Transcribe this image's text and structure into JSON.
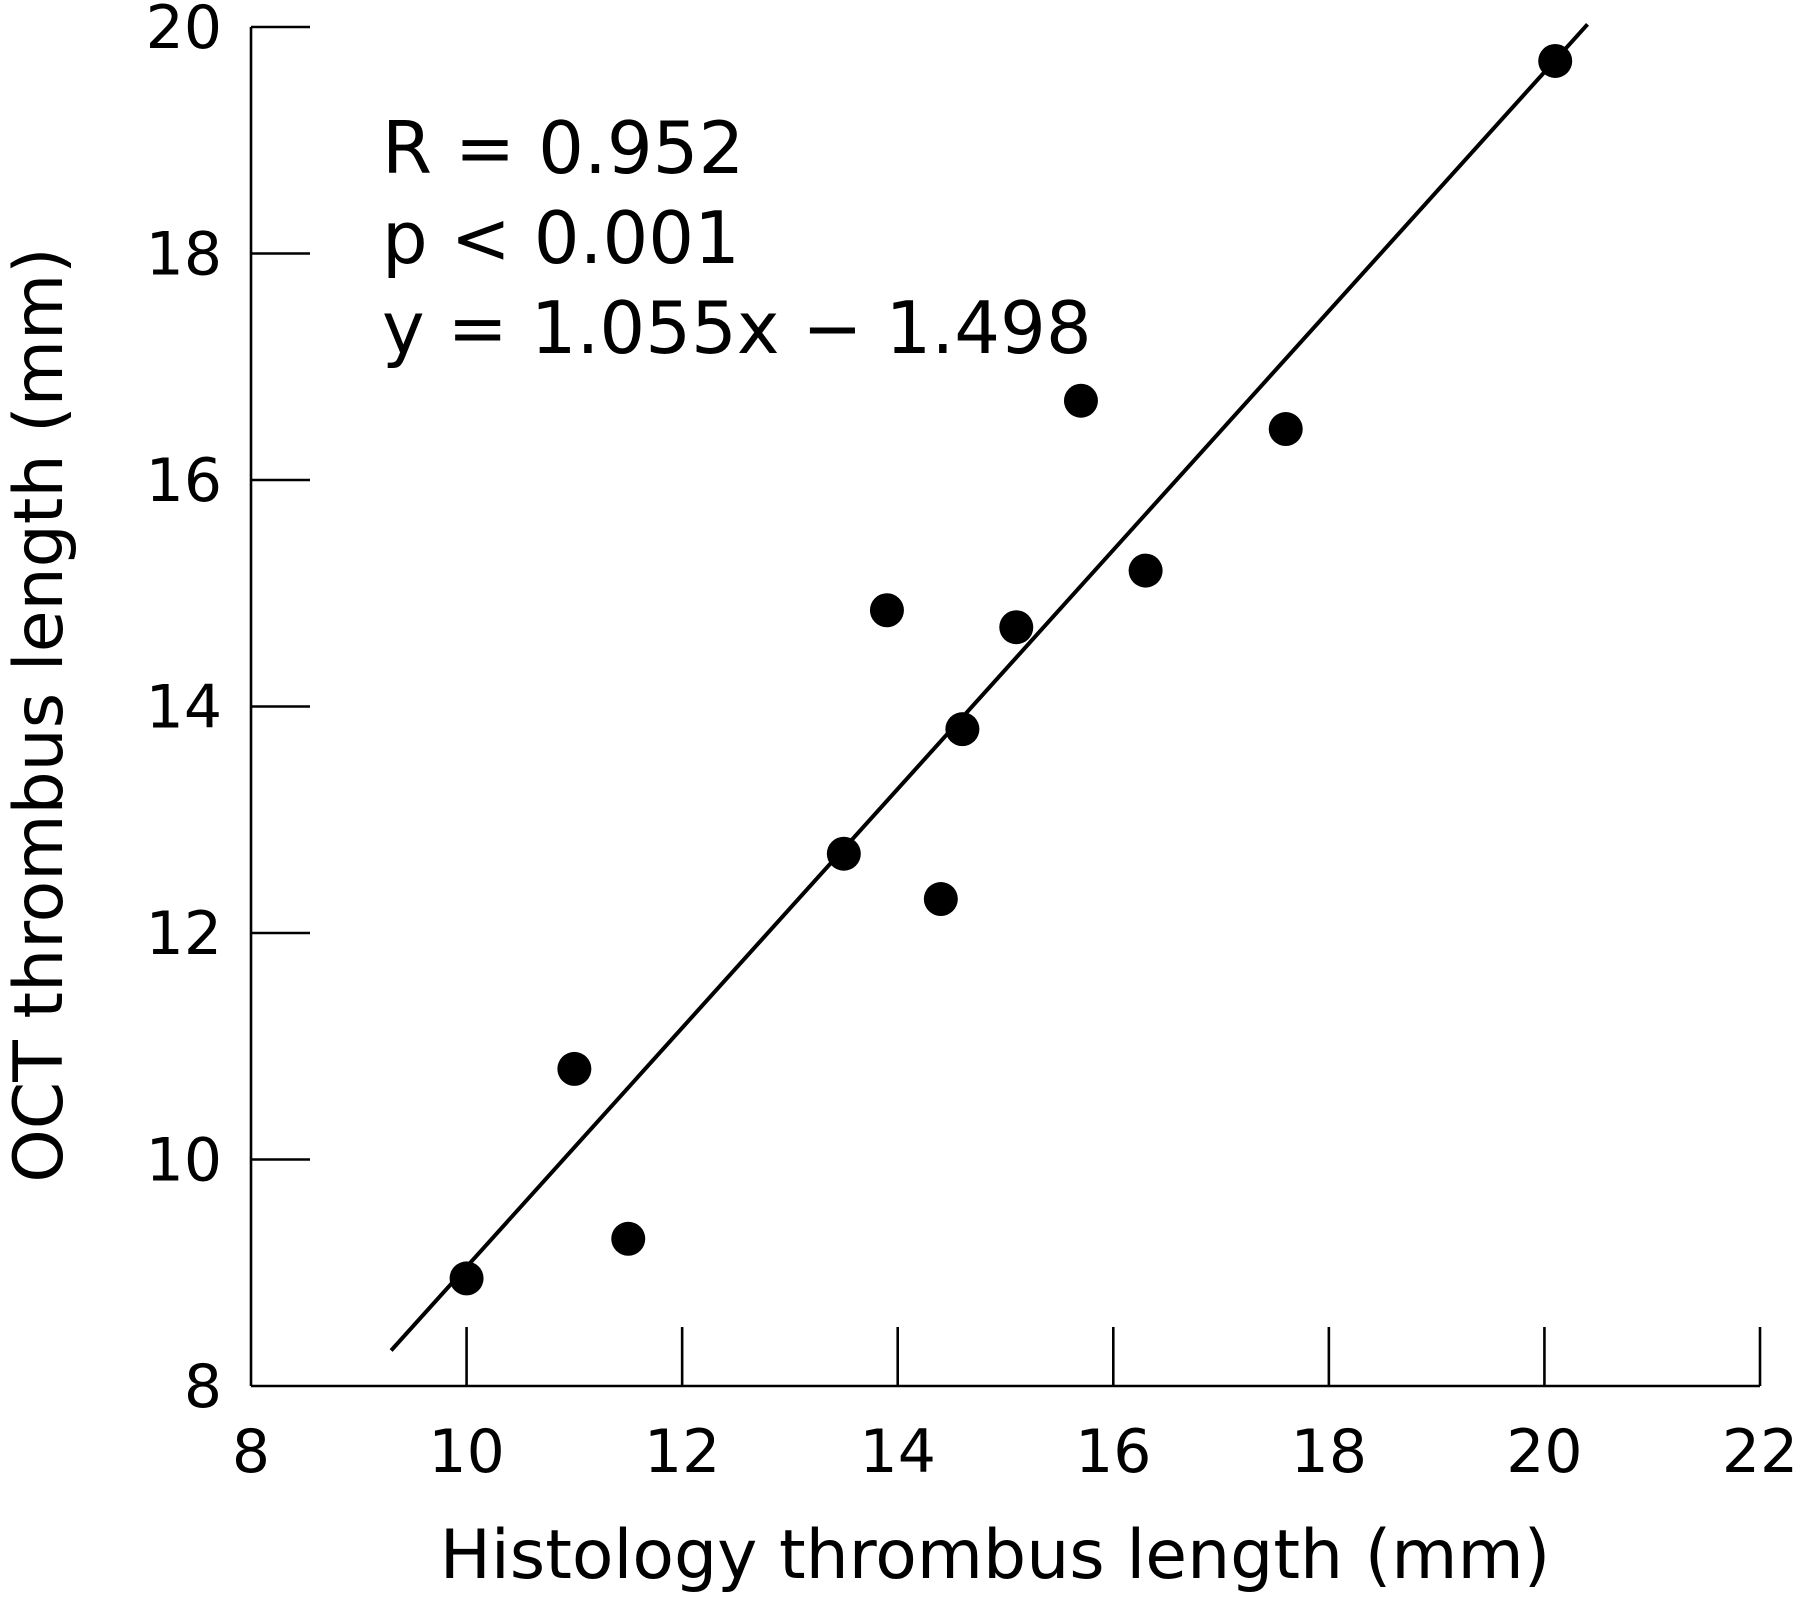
{
  "chart_data": {
    "type": "scatter",
    "xlabel": "Histology thrombus length (mm)",
    "ylabel": "OCT thrombus length (mm)",
    "xlim": [
      8,
      22
    ],
    "ylim": [
      8,
      20
    ],
    "x_ticks": [
      8,
      10,
      12,
      14,
      16,
      18,
      20,
      22
    ],
    "y_ticks": [
      8,
      10,
      12,
      14,
      16,
      18,
      20
    ],
    "x_tick_labels": [
      "8",
      "10",
      "12",
      "14",
      "16",
      "18",
      "20",
      "22"
    ],
    "y_tick_labels": [
      "8",
      "10",
      "12",
      "14",
      "16",
      "18",
      "20"
    ],
    "grid": false,
    "annotations": [
      "R = 0.952",
      "p < 0.001",
      "y = 1.055x − 1.498"
    ],
    "series": [
      {
        "points": [
          {
            "x": 10.0,
            "y": 8.95
          },
          {
            "x": 11.0,
            "y": 10.8
          },
          {
            "x": 11.5,
            "y": 9.3
          },
          {
            "x": 13.5,
            "y": 12.7
          },
          {
            "x": 13.9,
            "y": 14.85
          },
          {
            "x": 14.4,
            "y": 12.3
          },
          {
            "x": 14.6,
            "y": 13.8
          },
          {
            "x": 15.1,
            "y": 14.7
          },
          {
            "x": 15.7,
            "y": 16.7
          },
          {
            "x": 16.3,
            "y": 15.2
          },
          {
            "x": 17.6,
            "y": 16.45
          },
          {
            "x": 20.1,
            "y": 19.7
          }
        ]
      }
    ],
    "fit_line": {
      "slope": 1.055,
      "intercept": -1.498,
      "x_range": [
        9.3,
        20.4
      ]
    }
  }
}
